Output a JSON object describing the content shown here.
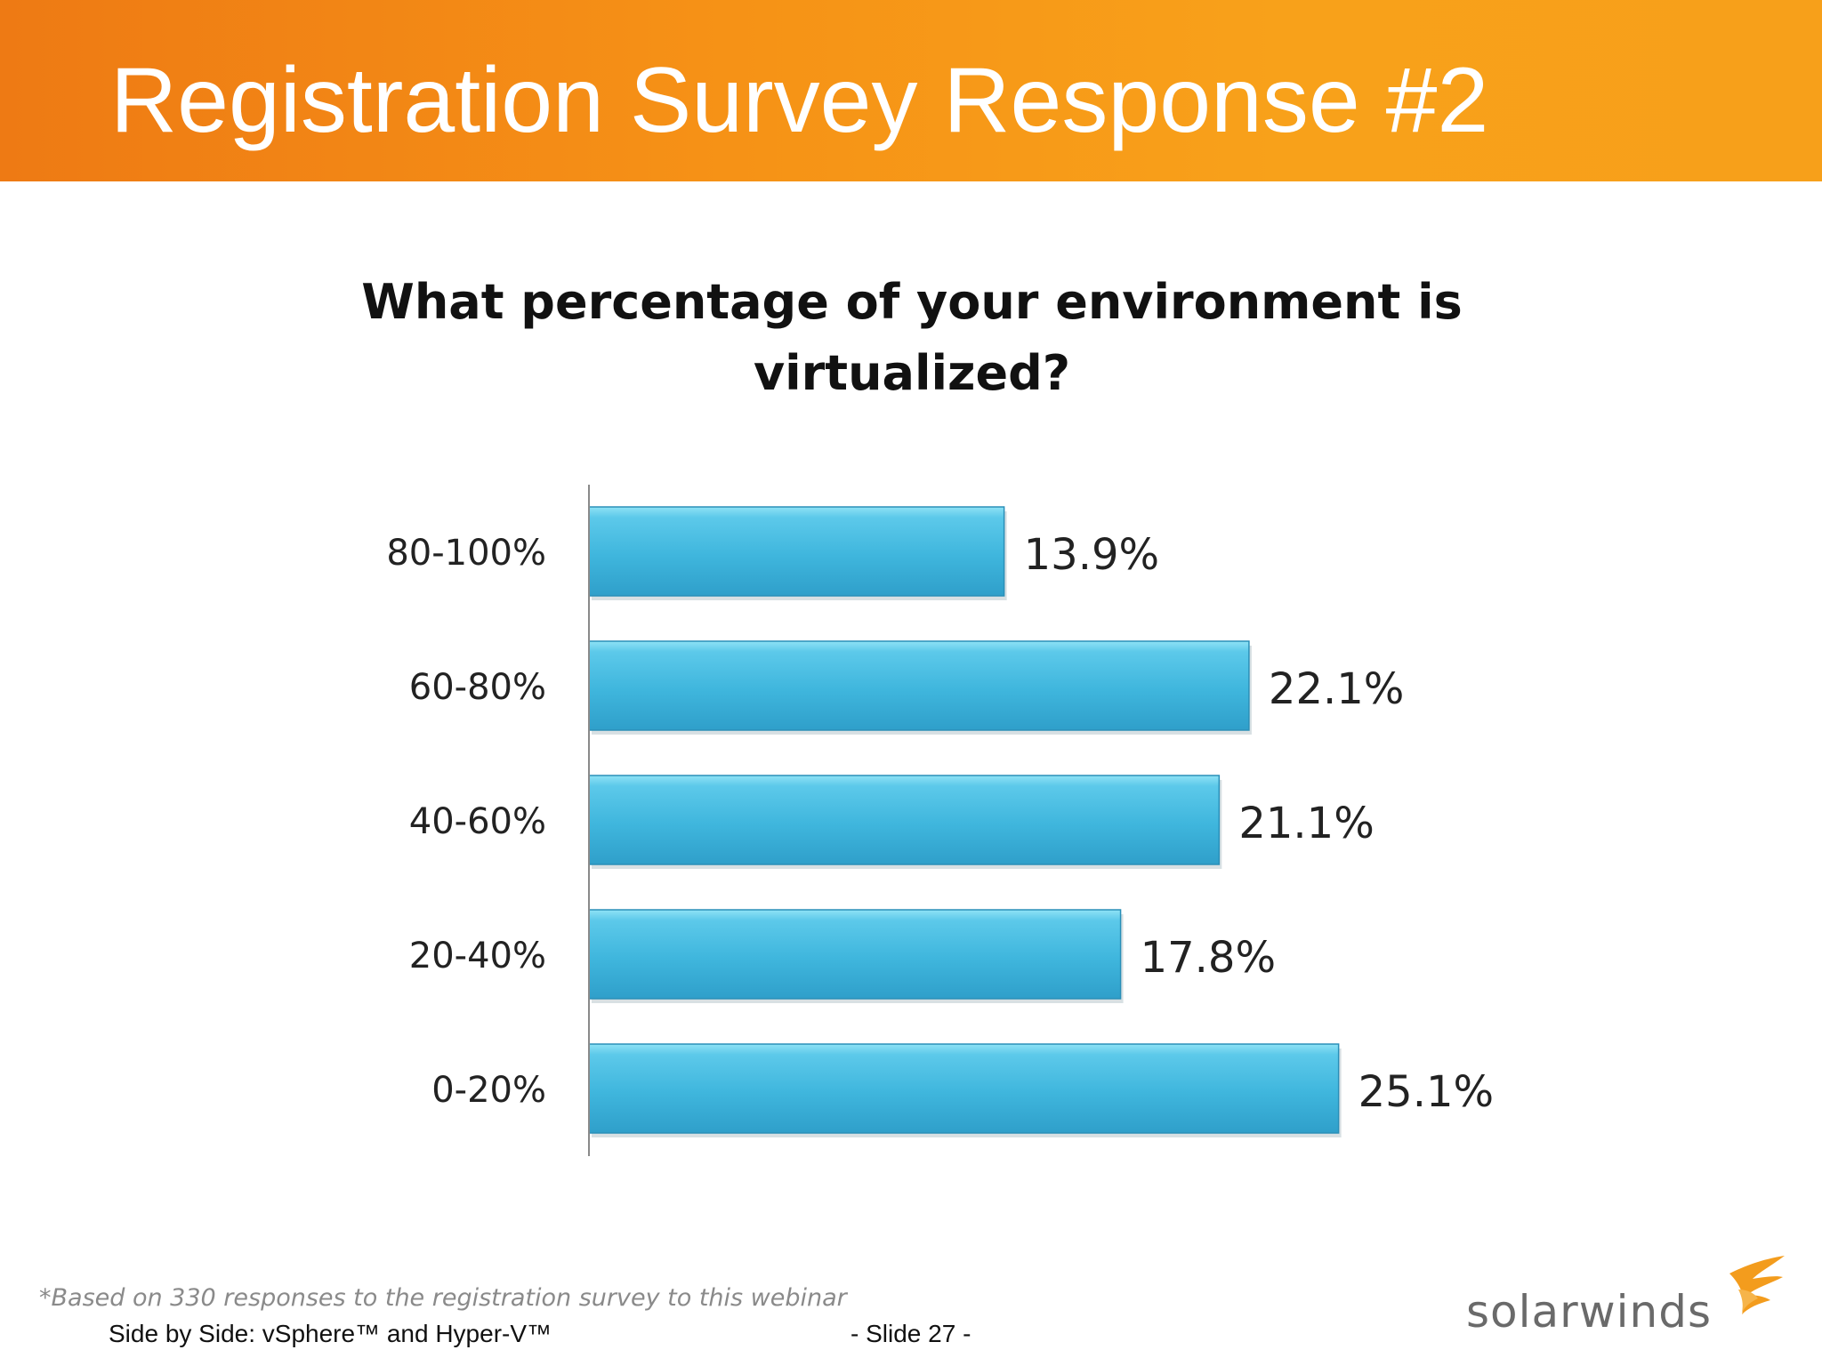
{
  "slide": {
    "title": "Registration Survey Response #2",
    "footnote": "*Based on 330 responses to the registration survey to this webinar",
    "footer_left": "Side by Side: vSphere™ and Hyper-V™",
    "footer_center": "- Slide 27 -",
    "logo_text": "solarwinds",
    "logo_icon": "flame-icon"
  },
  "chart_data": {
    "type": "bar",
    "orientation": "horizontal",
    "title": "What percentage of your environment is virtualized?",
    "categories": [
      "80-100%",
      "60-80%",
      "40-60%",
      "20-40%",
      "0-20%"
    ],
    "values": [
      13.9,
      22.1,
      21.1,
      17.8,
      25.1
    ],
    "data_labels": [
      "13.9%",
      "22.1%",
      "21.1%",
      "17.8%",
      "25.1%"
    ],
    "unit": "%",
    "xlim": [
      0,
      28
    ],
    "grid": false,
    "legend": "none",
    "colors": {
      "bar": "#3fb6dd",
      "bar_light": "#6fd3ef",
      "bar_dark": "#2a9cc4",
      "banner": "#f69216"
    }
  }
}
